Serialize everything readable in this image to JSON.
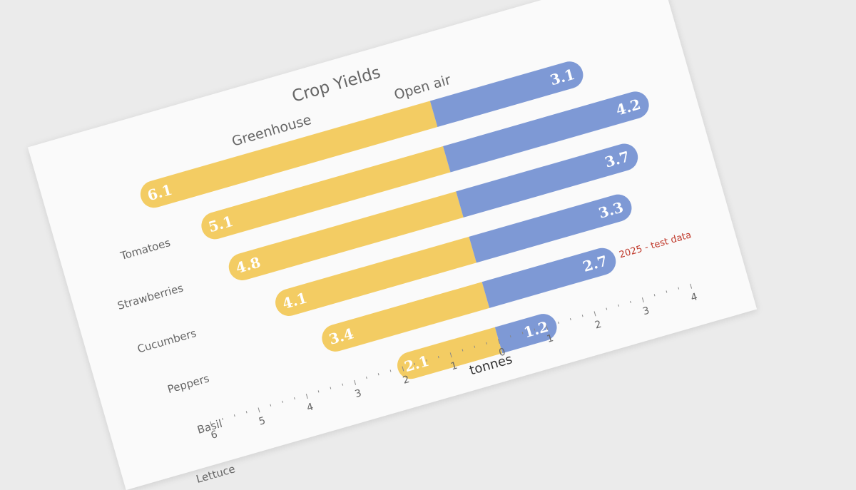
{
  "chart_data": {
    "type": "bar",
    "orientation": "horizontal-diverging",
    "title": "Crop Yields",
    "xlabel": "tonnes",
    "categories": [
      "Tomatoes",
      "Strawberries",
      "Cucumbers",
      "Peppers",
      "Basil",
      "Lettuce"
    ],
    "series": [
      {
        "name": "Greenhouse",
        "values": [
          6.1,
          5.1,
          4.8,
          4.1,
          3.4,
          2.1
        ],
        "color": "#f3cc63",
        "direction": "left"
      },
      {
        "name": "Open air",
        "values": [
          3.1,
          4.2,
          3.7,
          3.3,
          2.7,
          1.2
        ],
        "color": "#7e99d5",
        "direction": "right"
      }
    ],
    "xaxis": {
      "left_ticks": [
        6,
        5,
        4,
        3,
        2,
        1,
        0
      ],
      "right_ticks": [
        1,
        2,
        3,
        4
      ],
      "left_max": 6,
      "right_max": 4
    },
    "note": "2025 - test data",
    "grid": false,
    "legend": "series names above bars"
  }
}
